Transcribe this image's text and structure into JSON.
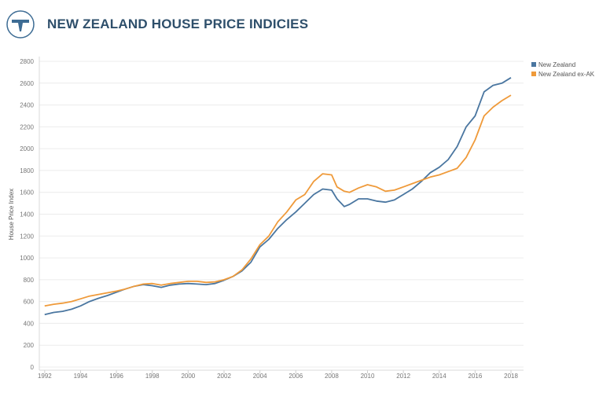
{
  "header": {
    "title": "NEW ZEALAND HOUSE PRICE INDICIES",
    "logo_icon": "tau-logo-icon",
    "logo_color": "#3d6c94"
  },
  "chart_data": {
    "type": "line",
    "title": "NEW ZEALAND HOUSE PRICE INDICIES",
    "xlabel": "",
    "ylabel": "House Price Index",
    "xlim": [
      1991.7,
      2018.7
    ],
    "ylim": [
      0,
      2800
    ],
    "yticks": [
      0,
      200,
      400,
      600,
      800,
      1000,
      1200,
      1400,
      1600,
      1800,
      2000,
      2200,
      2400,
      2600,
      2800
    ],
    "xticks": [
      1992,
      1994,
      1996,
      1998,
      2000,
      2002,
      2004,
      2006,
      2008,
      2010,
      2012,
      2014,
      2016,
      2018
    ],
    "grid": true,
    "legend_position": "top-right",
    "series": [
      {
        "name": "New Zealand",
        "color": "#4a76a0",
        "points": [
          [
            1992.0,
            480
          ],
          [
            1992.5,
            500
          ],
          [
            1993.0,
            510
          ],
          [
            1993.5,
            530
          ],
          [
            1994.0,
            560
          ],
          [
            1994.5,
            600
          ],
          [
            1995.0,
            630
          ],
          [
            1995.5,
            655
          ],
          [
            1996.0,
            685
          ],
          [
            1996.5,
            715
          ],
          [
            1997.0,
            740
          ],
          [
            1997.5,
            755
          ],
          [
            1998.0,
            745
          ],
          [
            1998.5,
            730
          ],
          [
            1999.0,
            750
          ],
          [
            1999.5,
            760
          ],
          [
            2000.0,
            765
          ],
          [
            2000.5,
            760
          ],
          [
            2001.0,
            755
          ],
          [
            2001.5,
            765
          ],
          [
            2002.0,
            795
          ],
          [
            2002.5,
            830
          ],
          [
            2003.0,
            880
          ],
          [
            2003.5,
            960
          ],
          [
            2004.0,
            1100
          ],
          [
            2004.5,
            1170
          ],
          [
            2005.0,
            1270
          ],
          [
            2005.5,
            1350
          ],
          [
            2006.0,
            1420
          ],
          [
            2006.5,
            1500
          ],
          [
            2007.0,
            1580
          ],
          [
            2007.5,
            1630
          ],
          [
            2008.0,
            1620
          ],
          [
            2008.3,
            1540
          ],
          [
            2008.7,
            1470
          ],
          [
            2009.0,
            1490
          ],
          [
            2009.5,
            1540
          ],
          [
            2010.0,
            1540
          ],
          [
            2010.5,
            1520
          ],
          [
            2011.0,
            1510
          ],
          [
            2011.5,
            1530
          ],
          [
            2012.0,
            1580
          ],
          [
            2012.5,
            1630
          ],
          [
            2013.0,
            1700
          ],
          [
            2013.5,
            1780
          ],
          [
            2014.0,
            1830
          ],
          [
            2014.5,
            1900
          ],
          [
            2015.0,
            2020
          ],
          [
            2015.5,
            2200
          ],
          [
            2016.0,
            2300
          ],
          [
            2016.5,
            2520
          ],
          [
            2017.0,
            2580
          ],
          [
            2017.5,
            2600
          ],
          [
            2018.0,
            2650
          ]
        ]
      },
      {
        "name": "New Zealand ex-AK",
        "color": "#ef9a3a",
        "points": [
          [
            1992.0,
            560
          ],
          [
            1992.5,
            575
          ],
          [
            1993.0,
            585
          ],
          [
            1993.5,
            600
          ],
          [
            1994.0,
            625
          ],
          [
            1994.5,
            650
          ],
          [
            1995.0,
            665
          ],
          [
            1995.5,
            680
          ],
          [
            1996.0,
            695
          ],
          [
            1996.5,
            715
          ],
          [
            1997.0,
            740
          ],
          [
            1997.5,
            760
          ],
          [
            1998.0,
            765
          ],
          [
            1998.5,
            750
          ],
          [
            1999.0,
            765
          ],
          [
            1999.5,
            775
          ],
          [
            2000.0,
            785
          ],
          [
            2000.5,
            785
          ],
          [
            2001.0,
            775
          ],
          [
            2001.5,
            780
          ],
          [
            2002.0,
            800
          ],
          [
            2002.5,
            830
          ],
          [
            2003.0,
            890
          ],
          [
            2003.5,
            990
          ],
          [
            2004.0,
            1120
          ],
          [
            2004.5,
            1200
          ],
          [
            2005.0,
            1330
          ],
          [
            2005.5,
            1420
          ],
          [
            2006.0,
            1530
          ],
          [
            2006.5,
            1580
          ],
          [
            2007.0,
            1700
          ],
          [
            2007.5,
            1770
          ],
          [
            2008.0,
            1760
          ],
          [
            2008.3,
            1650
          ],
          [
            2008.7,
            1610
          ],
          [
            2009.0,
            1600
          ],
          [
            2009.5,
            1640
          ],
          [
            2010.0,
            1670
          ],
          [
            2010.5,
            1650
          ],
          [
            2011.0,
            1610
          ],
          [
            2011.5,
            1620
          ],
          [
            2012.0,
            1650
          ],
          [
            2012.5,
            1680
          ],
          [
            2013.0,
            1710
          ],
          [
            2013.5,
            1740
          ],
          [
            2014.0,
            1760
          ],
          [
            2014.5,
            1790
          ],
          [
            2015.0,
            1820
          ],
          [
            2015.5,
            1920
          ],
          [
            2016.0,
            2080
          ],
          [
            2016.5,
            2300
          ],
          [
            2017.0,
            2380
          ],
          [
            2017.5,
            2440
          ],
          [
            2018.0,
            2490
          ]
        ]
      }
    ]
  }
}
